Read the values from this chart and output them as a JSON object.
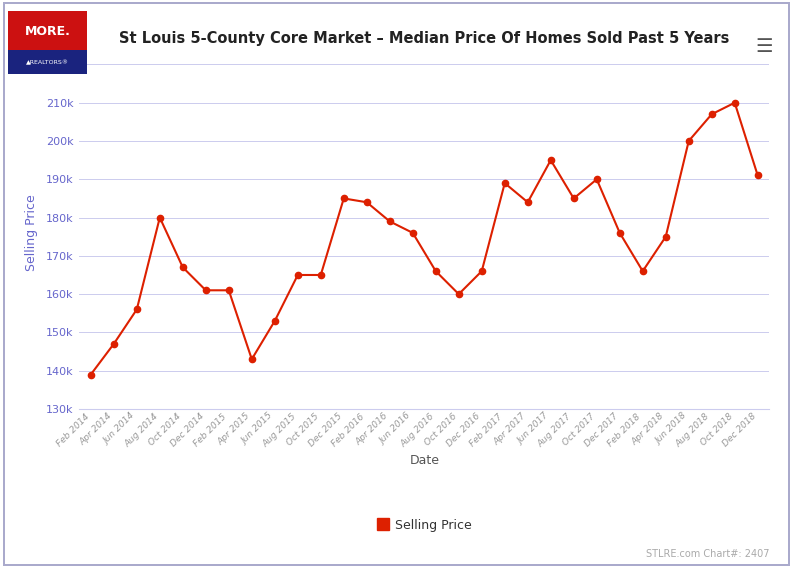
{
  "title": "St Louis 5-County Core Market – Median Price Of Homes Sold Past 5 Years",
  "xlabel": "Date",
  "ylabel": "Selling Price",
  "line_color": "#dd2000",
  "marker_color": "#dd2000",
  "background_color": "#ffffff",
  "axis_label_color": "#6666cc",
  "tick_label_color": "#999999",
  "grid_color": "#ccccee",
  "border_color": "#aaaacc",
  "ylim": [
    130000,
    222000
  ],
  "yticks": [
    130000,
    140000,
    150000,
    160000,
    170000,
    180000,
    190000,
    200000,
    210000,
    220000
  ],
  "legend_label": "Selling Price",
  "footer_text": "STLRE.com Chart#: 2407",
  "dates": [
    "Feb 2014",
    "Apr 2014",
    "Jun 2014",
    "Aug 2014",
    "Oct 2014",
    "Dec 2014",
    "Feb 2015",
    "Apr 2015",
    "Jun 2015",
    "Aug 2015",
    "Oct 2015",
    "Dec 2015",
    "Feb 2016",
    "Apr 2016",
    "Jun 2016",
    "Aug 2016",
    "Oct 2016",
    "Dec 2016",
    "Feb 2017",
    "Apr 2017",
    "Jun 2017",
    "Aug 2017",
    "Oct 2017",
    "Dec 2017",
    "Feb 2018",
    "Apr 2018",
    "Jun 2018",
    "Aug 2018",
    "Oct 2018",
    "Dec 2018"
  ],
  "values": [
    139000,
    147000,
    156000,
    180000,
    167000,
    161000,
    161000,
    143000,
    153000,
    165000,
    165000,
    185000,
    184000,
    179000,
    176000,
    166000,
    160000,
    166000,
    189000,
    184000,
    195000,
    185000,
    190000,
    176000,
    166000,
    175000,
    200000,
    207000,
    210000,
    191000
  ]
}
